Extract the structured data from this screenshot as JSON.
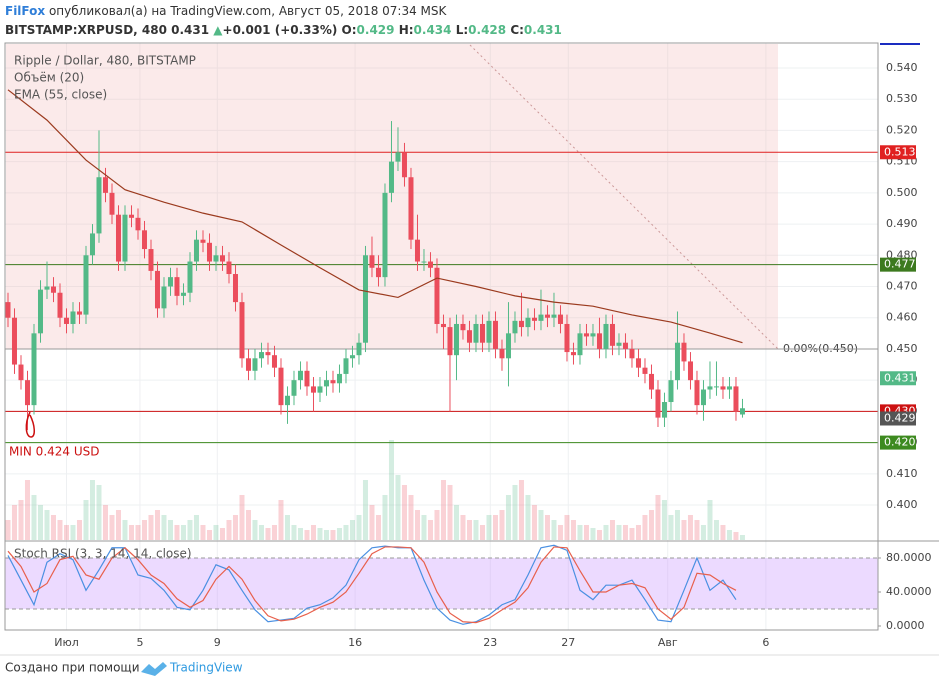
{
  "header": {
    "author": "FilFox",
    "published": "опубликовал(а) на TradingView.com, Август 05, 2018 07:34 MSK",
    "symbol": "BITSTAMP:XRPUSD, 480",
    "last": "0.431",
    "arrow": "▲",
    "change": "+0.001 (+0.33%)",
    "o": "O:",
    "o_value": "0.429",
    "h": "H:",
    "h_value": "0.434",
    "l": "L:",
    "l_value": "0.428",
    "c": "C:",
    "c_value": "0.431"
  },
  "footer": {
    "text": "Создано при помощи",
    "brand": "TradingView"
  },
  "chart_data": [
    {
      "type": "candlestick",
      "title": "Ripple / Dollar, 480, BITSTAMP",
      "color_up": "#53b987",
      "color_down": "#eb4d5c",
      "open": [
        0.465,
        0.46,
        0.445,
        0.44,
        0.432,
        0.455,
        0.469,
        0.47,
        0.468,
        0.46,
        0.458,
        0.462,
        0.461,
        0.48,
        0.487,
        0.505,
        0.5,
        0.493,
        0.478,
        0.493,
        0.492,
        0.488,
        0.482,
        0.475,
        0.463,
        0.47,
        0.473,
        0.467,
        0.468,
        0.478,
        0.485,
        0.484,
        0.478,
        0.48,
        0.478,
        0.474,
        0.465,
        0.447,
        0.443,
        0.447,
        0.449,
        0.448,
        0.444,
        0.432,
        0.435,
        0.44,
        0.443,
        0.438,
        0.436,
        0.438,
        0.44,
        0.439,
        0.442,
        0.447,
        0.448,
        0.452,
        0.48,
        0.476,
        0.473,
        0.5,
        0.51,
        0.513,
        0.505,
        0.485,
        0.478,
        0.478,
        0.476,
        0.458,
        0.457,
        0.448,
        0.458,
        0.456,
        0.452,
        0.458,
        0.452,
        0.459,
        0.45,
        0.447,
        0.455,
        0.459,
        0.457,
        0.46,
        0.459,
        0.461,
        0.46,
        0.461,
        0.458,
        0.449,
        0.448,
        0.455,
        0.454,
        0.455,
        0.45,
        0.458,
        0.451,
        0.452,
        0.45,
        0.447,
        0.444,
        0.442,
        0.437,
        0.428,
        0.433,
        0.44,
        0.452,
        0.446,
        0.44,
        0.432,
        0.437,
        0.438,
        0.438,
        0.437,
        0.438,
        0.429
      ],
      "high": [
        0.468,
        0.463,
        0.448,
        0.443,
        0.458,
        0.472,
        0.478,
        0.473,
        0.471,
        0.463,
        0.465,
        0.465,
        0.483,
        0.49,
        0.52,
        0.508,
        0.503,
        0.496,
        0.496,
        0.496,
        0.495,
        0.491,
        0.485,
        0.478,
        0.473,
        0.476,
        0.476,
        0.471,
        0.481,
        0.488,
        0.488,
        0.487,
        0.483,
        0.483,
        0.481,
        0.477,
        0.468,
        0.45,
        0.45,
        0.452,
        0.452,
        0.451,
        0.447,
        0.438,
        0.443,
        0.446,
        0.446,
        0.441,
        0.441,
        0.443,
        0.443,
        0.445,
        0.45,
        0.451,
        0.455,
        0.483,
        0.486,
        0.48,
        0.503,
        0.523,
        0.521,
        0.516,
        0.508,
        0.493,
        0.482,
        0.481,
        0.479,
        0.461,
        0.46,
        0.461,
        0.461,
        0.459,
        0.461,
        0.461,
        0.462,
        0.462,
        0.453,
        0.465,
        0.462,
        0.468,
        0.463,
        0.463,
        0.469,
        0.464,
        0.468,
        0.464,
        0.461,
        0.452,
        0.458,
        0.458,
        0.458,
        0.46,
        0.461,
        0.461,
        0.455,
        0.455,
        0.453,
        0.45,
        0.447,
        0.445,
        0.44,
        0.436,
        0.443,
        0.462,
        0.455,
        0.449,
        0.443,
        0.44,
        0.446,
        0.446,
        0.441,
        0.441,
        0.441,
        0.434
      ],
      "low": [
        0.457,
        0.442,
        0.437,
        0.424,
        0.429,
        0.452,
        0.466,
        0.465,
        0.457,
        0.455,
        0.455,
        0.458,
        0.458,
        0.477,
        0.484,
        0.497,
        0.49,
        0.475,
        0.475,
        0.489,
        0.485,
        0.479,
        0.472,
        0.46,
        0.46,
        0.467,
        0.464,
        0.464,
        0.465,
        0.475,
        0.481,
        0.475,
        0.475,
        0.475,
        0.471,
        0.462,
        0.444,
        0.44,
        0.44,
        0.444,
        0.445,
        0.441,
        0.429,
        0.426,
        0.432,
        0.437,
        0.435,
        0.43,
        0.433,
        0.435,
        0.436,
        0.436,
        0.439,
        0.444,
        0.445,
        0.449,
        0.473,
        0.47,
        0.47,
        0.497,
        0.507,
        0.502,
        0.482,
        0.475,
        0.475,
        0.473,
        0.455,
        0.45,
        0.43,
        0.44,
        0.453,
        0.449,
        0.449,
        0.449,
        0.449,
        0.447,
        0.443,
        0.438,
        0.452,
        0.454,
        0.454,
        0.456,
        0.456,
        0.457,
        0.457,
        0.455,
        0.446,
        0.445,
        0.445,
        0.451,
        0.451,
        0.447,
        0.447,
        0.448,
        0.448,
        0.447,
        0.444,
        0.441,
        0.439,
        0.434,
        0.425,
        0.425,
        0.43,
        0.437,
        0.443,
        0.437,
        0.429,
        0.427,
        0.434,
        0.435,
        0.434,
        0.434,
        0.427,
        0.428
      ],
      "close": [
        0.46,
        0.445,
        0.44,
        0.432,
        0.455,
        0.469,
        0.47,
        0.468,
        0.46,
        0.458,
        0.462,
        0.461,
        0.48,
        0.487,
        0.505,
        0.5,
        0.493,
        0.478,
        0.493,
        0.492,
        0.488,
        0.482,
        0.475,
        0.463,
        0.47,
        0.473,
        0.467,
        0.468,
        0.478,
        0.485,
        0.484,
        0.478,
        0.48,
        0.478,
        0.474,
        0.465,
        0.447,
        0.443,
        0.447,
        0.449,
        0.448,
        0.444,
        0.432,
        0.435,
        0.44,
        0.443,
        0.438,
        0.436,
        0.438,
        0.44,
        0.439,
        0.442,
        0.447,
        0.448,
        0.452,
        0.48,
        0.476,
        0.473,
        0.5,
        0.51,
        0.513,
        0.505,
        0.485,
        0.478,
        0.478,
        0.476,
        0.458,
        0.457,
        0.448,
        0.458,
        0.456,
        0.452,
        0.458,
        0.452,
        0.459,
        0.45,
        0.447,
        0.455,
        0.459,
        0.457,
        0.46,
        0.459,
        0.461,
        0.46,
        0.461,
        0.458,
        0.449,
        0.448,
        0.455,
        0.454,
        0.455,
        0.45,
        0.458,
        0.451,
        0.452,
        0.45,
        0.447,
        0.444,
        0.442,
        0.437,
        0.428,
        0.433,
        0.44,
        0.452,
        0.446,
        0.44,
        0.432,
        0.437,
        0.438,
        0.438,
        0.437,
        0.438,
        0.43,
        0.431
      ],
      "volume": {
        "name": "Объём (20)",
        "values": [
          20,
          35,
          40,
          60,
          45,
          35,
          30,
          25,
          20,
          15,
          15,
          20,
          40,
          60,
          55,
          35,
          25,
          30,
          20,
          15,
          15,
          20,
          25,
          30,
          25,
          20,
          15,
          15,
          20,
          25,
          15,
          10,
          15,
          12,
          20,
          25,
          45,
          30,
          20,
          15,
          12,
          15,
          40,
          25,
          15,
          12,
          10,
          15,
          12,
          10,
          10,
          12,
          15,
          20,
          25,
          60,
          35,
          25,
          45,
          100,
          65,
          55,
          45,
          30,
          25,
          20,
          30,
          60,
          55,
          35,
          25,
          20,
          20,
          15,
          25,
          25,
          30,
          45,
          55,
          60,
          45,
          35,
          30,
          25,
          20,
          15,
          25,
          20,
          15,
          15,
          12,
          10,
          15,
          20,
          15,
          15,
          12,
          15,
          25,
          30,
          45,
          40,
          25,
          30,
          20,
          25,
          20,
          15,
          40,
          20,
          15,
          10,
          8,
          5
        ]
      },
      "ema": {
        "name": "EMA (55, close)",
        "color": "#9b3a1e",
        "x": [
          0,
          6,
          12,
          18,
          24,
          30,
          36,
          42,
          48,
          54,
          60,
          66,
          72,
          78,
          84,
          90,
          96,
          102,
          108,
          113
        ],
        "values": [
          0.533,
          0.5233,
          0.5105,
          0.501,
          0.497,
          0.4935,
          0.4907,
          0.4833,
          0.476,
          0.4689,
          0.4665,
          0.4727,
          0.47,
          0.467,
          0.465,
          0.4637,
          0.4609,
          0.4586,
          0.4551,
          0.452
        ]
      },
      "levels": [
        {
          "value": 0.513,
          "label": "0.513",
          "color": "#e02020"
        },
        {
          "value": 0.477,
          "label": "0.477",
          "color": "#3d7a1f"
        },
        {
          "value": 0.45,
          "color": "#999999"
        },
        {
          "value": 0.43,
          "label": "0.430",
          "color": "#cc1111"
        },
        {
          "value": 0.42,
          "label": "0.420",
          "color": "#3d8a1f"
        }
      ],
      "price_labels": [
        {
          "value": 0.431,
          "label": "0.431",
          "color": "#53b987"
        },
        {
          "value": 0.429,
          "label": "0.429",
          "color": "#555555"
        }
      ],
      "annotations": [
        "MIN 0.424 USD",
        "0.00%(0.450)"
      ],
      "xlim": [
        -0.46,
        133.85
      ],
      "ylim": [
        0.3888,
        0.548
      ],
      "yticks": [
        {
          "value": 0.54,
          "label": "0.540"
        },
        {
          "value": 0.53,
          "label": "0.530"
        },
        {
          "value": 0.52,
          "label": "0.520"
        },
        {
          "value": 0.51,
          "label": "0.510"
        },
        {
          "value": 0.5,
          "label": "0.500"
        },
        {
          "value": 0.49,
          "label": "0.490"
        },
        {
          "value": 0.48,
          "label": "0.480"
        },
        {
          "value": 0.47,
          "label": "0.470"
        },
        {
          "value": 0.46,
          "label": "0.460"
        },
        {
          "value": 0.45,
          "label": "0.450"
        },
        {
          "value": 0.44,
          "label": "0.440"
        },
        {
          "value": 0.43,
          "label": "0.430"
        },
        {
          "value": 0.42,
          "label": "0.420"
        },
        {
          "value": 0.41,
          "label": "0.410"
        },
        {
          "value": 0.4,
          "label": "0.400"
        }
      ],
      "xticks": [
        {
          "value": 9,
          "label": "Июл"
        },
        {
          "value": 20.3,
          "label": "5"
        },
        {
          "value": 32.2,
          "label": "9"
        },
        {
          "value": 53.4,
          "label": "16"
        },
        {
          "value": 74.2,
          "label": "23"
        },
        {
          "value": 86.2,
          "label": "27"
        },
        {
          "value": 101.5,
          "label": "Авг"
        },
        {
          "value": 116.6,
          "label": "6"
        }
      ],
      "grid": true
    },
    {
      "type": "line",
      "title": "Stoch RSI (3, 3, 14, 14, close)",
      "ylim": [
        -4.7,
        98.8
      ],
      "band": [
        20,
        80
      ],
      "yticks": [
        {
          "value": 80,
          "label": "80.0000"
        },
        {
          "value": 40,
          "label": "40.0000"
        },
        {
          "value": 0,
          "label": "0.0000"
        }
      ],
      "x": [
        0,
        2,
        4,
        6,
        8,
        10,
        12,
        14,
        16,
        18,
        20,
        22,
        24,
        26,
        28,
        30,
        32,
        34,
        36,
        38,
        40,
        42,
        44,
        46,
        48,
        50,
        52,
        54,
        56,
        58,
        60,
        62,
        64,
        66,
        68,
        70,
        72,
        74,
        76,
        78,
        80,
        82,
        84,
        86,
        88,
        90,
        92,
        94,
        96,
        98,
        100,
        102,
        104,
        106,
        108,
        110,
        112
      ],
      "series": [
        {
          "color": "#4a90e2",
          "values": [
            83,
            54,
            25,
            75,
            85,
            78,
            42,
            66,
            92,
            92,
            60,
            56,
            42,
            22,
            19,
            42,
            72,
            66,
            42,
            19,
            5,
            7,
            9,
            21,
            25,
            33,
            48,
            78,
            92,
            94,
            92,
            92,
            54,
            21,
            7,
            2,
            5,
            13,
            25,
            31,
            60,
            92,
            95,
            89,
            42,
            31,
            48,
            48,
            54,
            31,
            7,
            5,
            42,
            80,
            42,
            54,
            31
          ]
        },
        {
          "color": "#e8604c",
          "values": [
            88,
            70,
            40,
            50,
            78,
            82,
            60,
            55,
            80,
            92,
            78,
            60,
            50,
            32,
            22,
            30,
            55,
            70,
            55,
            30,
            12,
            6,
            8,
            14,
            22,
            28,
            40,
            62,
            85,
            93,
            93,
            92,
            75,
            40,
            15,
            5,
            4,
            9,
            19,
            28,
            45,
            75,
            93,
            92,
            65,
            40,
            40,
            48,
            50,
            45,
            20,
            8,
            22,
            62,
            60,
            50,
            42
          ]
        }
      ]
    }
  ]
}
